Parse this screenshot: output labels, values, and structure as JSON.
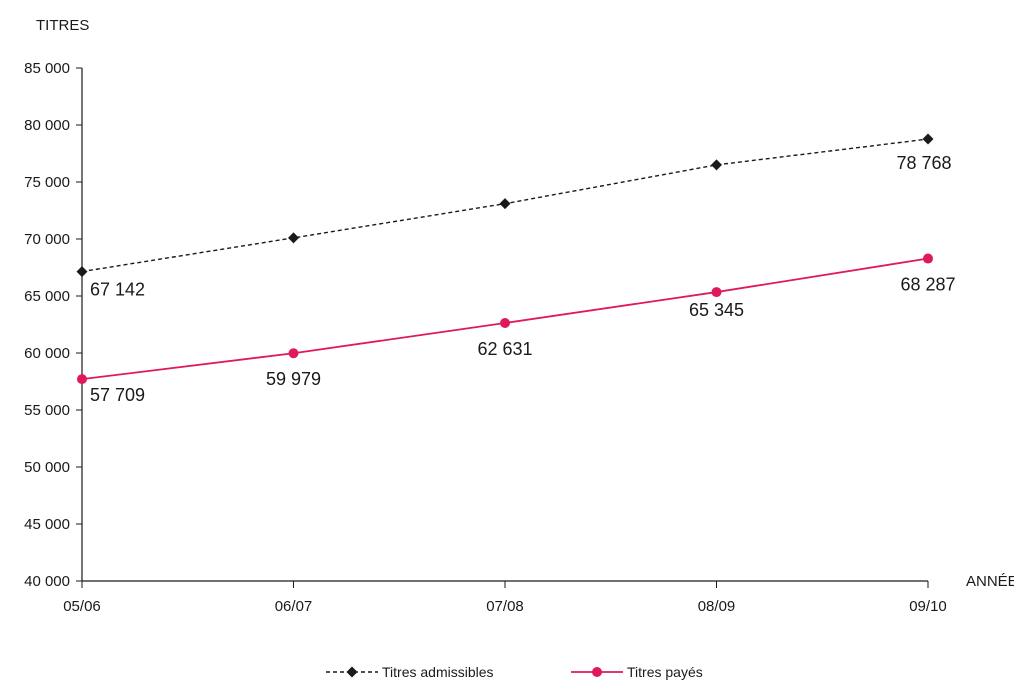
{
  "chart_data": {
    "type": "line",
    "title": "",
    "ylabel": "TITRES",
    "xlabel": "ANNÉE",
    "categories": [
      "05/06",
      "06/07",
      "07/08",
      "08/09",
      "09/10"
    ],
    "ylim": [
      40000,
      85000
    ],
    "yticks": [
      40000,
      45000,
      50000,
      55000,
      60000,
      65000,
      70000,
      75000,
      80000,
      85000
    ],
    "ytick_labels": [
      "40 000",
      "45 000",
      "50 000",
      "55 000",
      "60 000",
      "65 000",
      "70 000",
      "75 000",
      "80 000",
      "85 000"
    ],
    "grid": false,
    "legend_position": "bottom",
    "series": [
      {
        "name": "Titres admissibles",
        "values": [
          67142,
          70100,
          73100,
          76500,
          78768
        ],
        "data_labels": [
          "67 142",
          "",
          "",
          "",
          "78 768"
        ],
        "color": "#1a1a1a",
        "line_style": "dashed",
        "marker": "diamond"
      },
      {
        "name": "Titres payés",
        "values": [
          57709,
          59979,
          62631,
          65345,
          68287
        ],
        "data_labels": [
          "57 709",
          "59 979",
          "62 631",
          "65 345",
          "68 287"
        ],
        "color": "#e0195a",
        "line_style": "solid",
        "marker": "circle"
      }
    ]
  }
}
